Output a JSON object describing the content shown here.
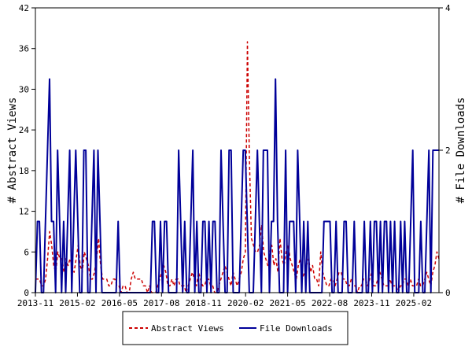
{
  "chart_data": {
    "type": "line",
    "title": "",
    "x_ticks": [
      "2013-11",
      "2015-02",
      "2016-05",
      "2017-08",
      "2018-11",
      "2020-02",
      "2021-05",
      "2022-08",
      "2023-11",
      "2025-02"
    ],
    "x_range": [
      "2013-11",
      "2025-11"
    ],
    "y_left": {
      "label": "# Abstract Views",
      "range": [
        0,
        42
      ],
      "ticks": [
        "0",
        "6",
        "12",
        "18",
        "24",
        "30",
        "36",
        "42"
      ]
    },
    "y_right": {
      "label": "# File Downloads",
      "range": [
        0,
        4
      ],
      "ticks": [
        "0",
        "2",
        "4"
      ]
    },
    "grid": false,
    "legend_position": "bottom",
    "series": [
      {
        "name": "Abstract Views",
        "axis": "left",
        "style": "dashed",
        "color": "#cc0000",
        "values": [
          2,
          2,
          2,
          1,
          1,
          2,
          5,
          9,
          7,
          4,
          3,
          6,
          5,
          5,
          3,
          5,
          4,
          5,
          4,
          3,
          5,
          7,
          4,
          3,
          6,
          5,
          4,
          2,
          2,
          3,
          5,
          8,
          4,
          2,
          2,
          2,
          1,
          1,
          2,
          2,
          1,
          1,
          0,
          1,
          1,
          0,
          0,
          2,
          3,
          2,
          2,
          2,
          2,
          1,
          1,
          0,
          1,
          0,
          0,
          0,
          1,
          2,
          3,
          4,
          3,
          1,
          1,
          2,
          1,
          2,
          2,
          1,
          1,
          1,
          0,
          1,
          2,
          3,
          2,
          1,
          3,
          2,
          1,
          1,
          2,
          2,
          1,
          1,
          0,
          0,
          1,
          2,
          3,
          4,
          3,
          2,
          1,
          3,
          2,
          1,
          2,
          3,
          5,
          6,
          37,
          20,
          8,
          7,
          6,
          6,
          7,
          10,
          6,
          5,
          4,
          6,
          7,
          4,
          5,
          3,
          8,
          5,
          4,
          6,
          7,
          5,
          4,
          3,
          2,
          4,
          5,
          2,
          3,
          4,
          5,
          3,
          4,
          2,
          2,
          1,
          6,
          3,
          2,
          1,
          1,
          2,
          2,
          1,
          2,
          3,
          3,
          2,
          2,
          1,
          1,
          2,
          1,
          1,
          0,
          1,
          1,
          2,
          2,
          1,
          2,
          3,
          1,
          1,
          2,
          3,
          2,
          1,
          1,
          1,
          2,
          1,
          1,
          1,
          0,
          1,
          1,
          2,
          2,
          1,
          2,
          1,
          1,
          1,
          2,
          1,
          1,
          2,
          3,
          2,
          1,
          3,
          4,
          6,
          5
        ]
      },
      {
        "name": "File Downloads",
        "axis": "right",
        "style": "solid",
        "color": "#000099",
        "values": [
          0,
          1,
          1,
          0,
          0,
          1,
          2,
          3,
          1,
          1,
          0,
          2,
          1,
          0,
          1,
          0,
          1,
          2,
          0,
          1,
          2,
          1,
          0,
          0,
          2,
          2,
          0,
          0,
          1,
          2,
          0,
          2,
          1,
          0,
          0,
          0,
          0,
          0,
          0,
          0,
          0,
          1,
          0,
          0,
          0,
          0,
          0,
          0,
          0,
          0,
          0,
          0,
          0,
          0,
          0,
          0,
          0,
          0,
          1,
          1,
          0,
          0,
          1,
          0,
          1,
          1,
          0,
          0,
          0,
          0,
          0,
          2,
          1,
          0,
          1,
          0,
          0,
          1,
          2,
          0,
          1,
          0,
          0,
          1,
          1,
          0,
          1,
          0,
          1,
          1,
          0,
          0,
          2,
          1,
          0,
          0,
          2,
          2,
          0,
          0,
          0,
          0,
          1,
          2,
          2,
          1,
          0,
          0,
          0,
          1,
          2,
          1,
          0,
          2,
          2,
          2,
          0,
          1,
          1,
          3,
          1,
          0,
          0,
          0,
          2,
          0,
          1,
          1,
          1,
          0,
          2,
          1,
          0,
          1,
          0,
          1,
          0,
          0,
          0,
          0,
          0,
          0,
          0,
          1,
          1,
          1,
          1,
          0,
          0,
          1,
          0,
          0,
          0,
          1,
          1,
          0,
          0,
          0,
          1,
          0,
          0,
          0,
          0,
          1,
          0,
          0,
          1,
          0,
          1,
          1,
          0,
          1,
          0,
          1,
          1,
          0,
          1,
          0,
          1,
          0,
          0,
          1,
          0,
          1,
          0,
          0,
          1,
          2,
          0,
          0,
          0,
          1,
          0,
          0,
          1,
          2,
          0,
          2,
          2,
          2,
          2
        ]
      }
    ]
  }
}
